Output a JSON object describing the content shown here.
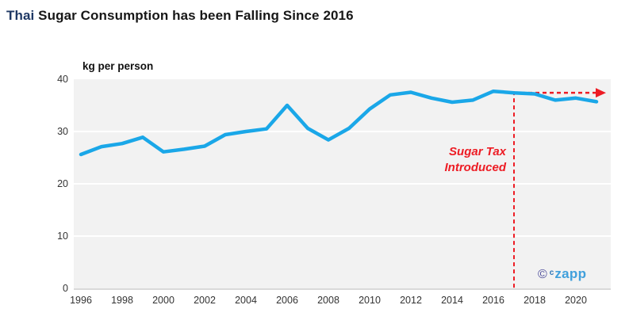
{
  "page": {
    "title_prefix": "Thai",
    "title_rest": " Sugar Consumption has been Falling Since 2016"
  },
  "chart_data": {
    "type": "line",
    "title": "Thai Sugar Consumption has been Falling Since 2016",
    "ylabel": "kg per person",
    "x": [
      1996,
      1997,
      1998,
      1999,
      2000,
      2001,
      2002,
      2003,
      2004,
      2005,
      2006,
      2007,
      2008,
      2009,
      2010,
      2011,
      2012,
      2013,
      2014,
      2015,
      2016,
      2017,
      2018,
      2019,
      2020,
      2021
    ],
    "series": [
      {
        "name": "Thai sugar consumption",
        "color": "#1aa7e8",
        "values": [
          25.6,
          27.1,
          27.7,
          28.9,
          26.1,
          26.6,
          27.2,
          29.4,
          30.0,
          30.5,
          35.0,
          30.6,
          28.4,
          30.6,
          34.3,
          37.0,
          37.5,
          36.4,
          35.6,
          36.0,
          37.7,
          37.4,
          37.2,
          36.0,
          36.4,
          35.7
        ]
      }
    ],
    "x_ticks": [
      1996,
      1998,
      2000,
      2002,
      2004,
      2006,
      2008,
      2010,
      2012,
      2014,
      2016,
      2018,
      2020
    ],
    "y_ticks": [
      0,
      10,
      20,
      30,
      40
    ],
    "ylim": [
      0,
      40
    ],
    "grid": "horizontal-white-on-gray-panel",
    "legend": "none",
    "annotation": {
      "line1": "Sugar Tax",
      "line2": "Introduced",
      "color": "#ed1c24",
      "marker_year": 2017,
      "arrow_level": 37.4,
      "style": "dashed vertical line at 2017 with dashed horizontal arrow to right edge"
    }
  },
  "watermark": {
    "copyright_symbol": "©",
    "super_c": "c",
    "brand": "zapp"
  },
  "colors": {
    "line": "#1aa7e8",
    "annotation_red": "#ed1c24",
    "panel_bg": "#f2f2f2",
    "gridline": "#ffffff",
    "axis_line": "#d9d9d9",
    "tick_text": "#333333",
    "title_prefix": "#1f3864",
    "title_text": "#171717"
  }
}
